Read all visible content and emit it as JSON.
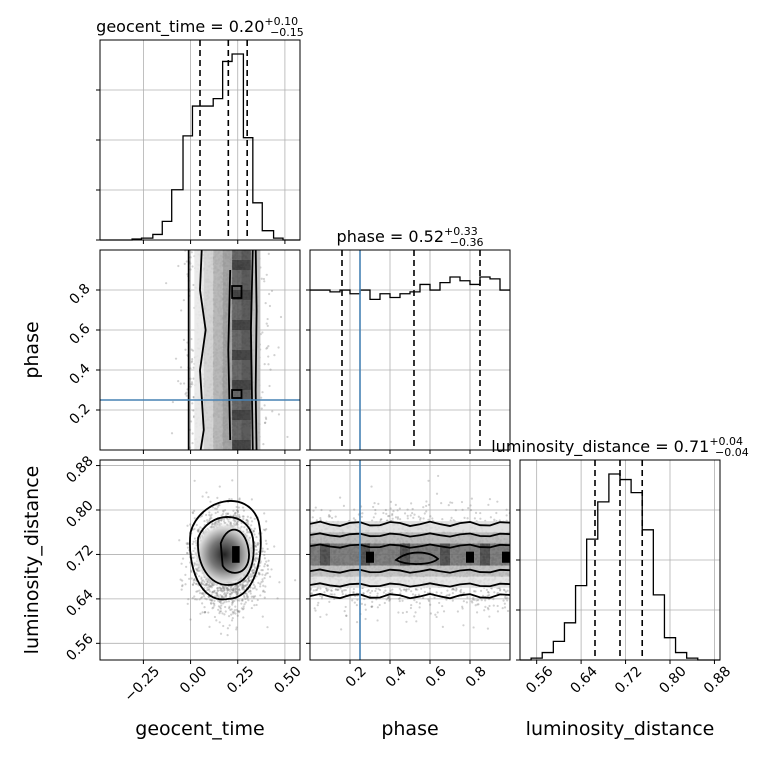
{
  "chart_data": {
    "type": "corner",
    "parameters": [
      "geocent_time",
      "phase",
      "luminosity_distance"
    ],
    "injection": {
      "phase": 0.25,
      "color": "#4682b4"
    },
    "panels": {
      "geocent_time": {
        "title_base": "geocent_time = 0.20",
        "title_plus": "+0.10",
        "title_minus": "−0.15",
        "quantiles": [
          0.05,
          0.2,
          0.3
        ],
        "xlim": [
          -0.48,
          0.58
        ],
        "ticks": [
          -0.25,
          0.0,
          0.25,
          0.5
        ],
        "tick_labels": [
          "−0.25",
          "0.00",
          "0.25",
          "0.50"
        ],
        "hist": {
          "edges": [
            -0.48,
            -0.42,
            -0.37,
            -0.31,
            -0.26,
            -0.2,
            -0.15,
            -0.1,
            -0.04,
            0.01,
            0.06,
            0.12,
            0.17,
            0.22,
            0.28,
            0.33,
            0.38,
            0.44,
            0.49,
            0.54,
            0.58
          ],
          "counts": [
            0,
            0,
            0,
            0.005,
            0.01,
            0.03,
            0.1,
            0.27,
            0.56,
            0.72,
            0.72,
            0.76,
            0.96,
            1.0,
            0.55,
            0.2,
            0.05,
            0.01,
            0,
            0
          ]
        }
      },
      "phase": {
        "title_base": "phase = 0.52",
        "title_plus": "+0.33",
        "title_minus": "−0.36",
        "quantiles": [
          0.16,
          0.52,
          0.85
        ],
        "xlim": [
          0.0,
          1.0
        ],
        "ticks": [
          0.2,
          0.4,
          0.6,
          0.8
        ],
        "tick_labels": [
          "0.2",
          "0.4",
          "0.6",
          "0.8"
        ],
        "hist": {
          "edges": [
            0.0,
            0.05,
            0.1,
            0.15,
            0.2,
            0.25,
            0.3,
            0.35,
            0.4,
            0.45,
            0.5,
            0.55,
            0.6,
            0.65,
            0.7,
            0.75,
            0.8,
            0.85,
            0.9,
            0.95,
            1.0
          ],
          "counts": [
            0.86,
            0.86,
            0.85,
            0.86,
            0.84,
            0.86,
            0.81,
            0.84,
            0.82,
            0.84,
            0.85,
            0.89,
            0.86,
            0.9,
            0.93,
            0.91,
            0.89,
            0.93,
            0.92,
            0.86
          ]
        }
      },
      "luminosity_distance": {
        "title_base": "luminosity_distance = 0.71",
        "title_plus": "+0.04",
        "title_minus": "−0.04",
        "quantiles": [
          0.665,
          0.71,
          0.75
        ],
        "xlim": [
          0.53,
          0.89
        ],
        "ticks": [
          0.56,
          0.64,
          0.72,
          0.8,
          0.88
        ],
        "tick_labels": [
          "0.56",
          "0.64",
          "0.72",
          "0.80",
          "0.88"
        ],
        "hist": {
          "edges": [
            0.53,
            0.55,
            0.57,
            0.59,
            0.61,
            0.63,
            0.65,
            0.67,
            0.69,
            0.71,
            0.73,
            0.75,
            0.77,
            0.79,
            0.81,
            0.83,
            0.85,
            0.87,
            0.89
          ],
          "counts": [
            0,
            0.01,
            0.04,
            0.1,
            0.2,
            0.4,
            0.65,
            0.85,
            1.0,
            0.97,
            0.9,
            0.7,
            0.35,
            0.12,
            0.04,
            0.01,
            0,
            0
          ]
        }
      }
    },
    "ylim": {
      "phase": [
        0.0,
        1.0
      ],
      "luminosity_distance": [
        0.53,
        0.89
      ]
    },
    "yticks": {
      "phase": [
        0.2,
        0.4,
        0.6,
        0.8
      ],
      "phase_labels": [
        "0.2",
        "0.4",
        "0.6",
        "0.8"
      ],
      "luminosity_distance": [
        0.56,
        0.64,
        0.72,
        0.8,
        0.88
      ],
      "luminosity_distance_labels": [
        "0.56",
        "0.64",
        "0.72",
        "0.80",
        "0.88"
      ]
    },
    "grid": true
  }
}
